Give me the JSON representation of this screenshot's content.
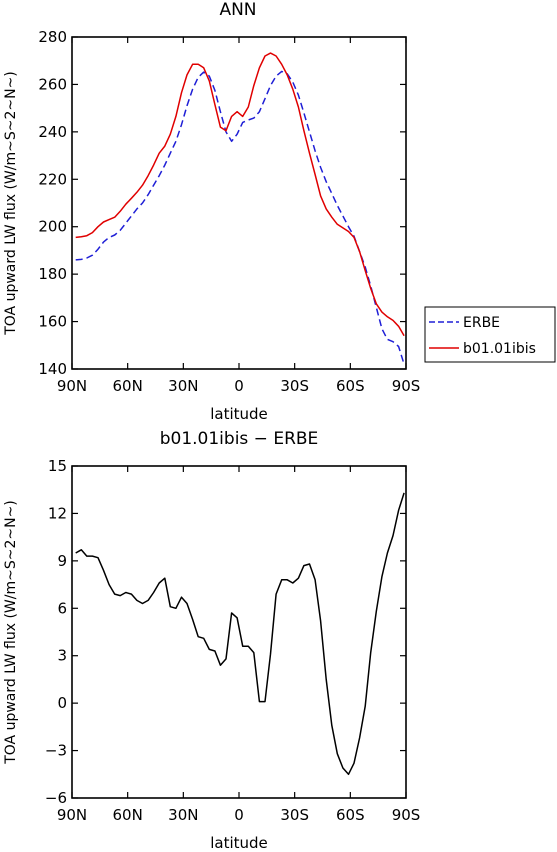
{
  "chart_data": [
    {
      "type": "line",
      "title": "ANN",
      "xlabel": "latitude",
      "ylabel": "TOA upward LW flux (W/m~S~2~N~)",
      "xlim": [
        90,
        -90
      ],
      "ylim": [
        140,
        280
      ],
      "x_ticks": [
        90,
        60,
        30,
        0,
        -30,
        -60,
        -90
      ],
      "x_tick_labels": [
        "90N",
        "60N",
        "30N",
        "0",
        "30S",
        "60S",
        "90S"
      ],
      "y_ticks": [
        140,
        160,
        180,
        200,
        220,
        240,
        260,
        280
      ],
      "y_tick_labels": [
        "140",
        "160",
        "180",
        "200",
        "220",
        "240",
        "260",
        "280"
      ],
      "legend_position": "right",
      "series": [
        {
          "name": "ERBE",
          "color": "#1f1fd6",
          "dash": "dashed",
          "x": [
            88,
            85,
            82,
            79,
            76,
            73,
            70,
            67,
            64,
            61,
            58,
            55,
            52,
            49,
            46,
            43,
            40,
            37,
            34,
            31,
            28,
            25,
            22,
            19,
            16,
            13,
            10,
            7,
            4,
            1,
            -2,
            -5,
            -8,
            -11,
            -14,
            -17,
            -20,
            -23,
            -26,
            -29,
            -32,
            -35,
            -38,
            -41,
            -44,
            -47,
            -50,
            -53,
            -56,
            -59,
            -62,
            -65,
            -68,
            -71,
            -74,
            -77,
            -80,
            -83,
            -86,
            -89
          ],
          "y": [
            186,
            186.2,
            186.8,
            188,
            190.5,
            193.5,
            195.5,
            196.5,
            198.5,
            201.5,
            204.5,
            207.5,
            210,
            213.5,
            217.5,
            221.5,
            226,
            231,
            236,
            243,
            251,
            258,
            263,
            265.2,
            263.5,
            257.5,
            248.5,
            240,
            236,
            239,
            244,
            245,
            245.8,
            248.5,
            254,
            259.5,
            263.5,
            265.5,
            264.5,
            261,
            255.5,
            248,
            240,
            232,
            225,
            219,
            214,
            209,
            204.5,
            200,
            196,
            189.5,
            183,
            175,
            166,
            157,
            152.5,
            151.5,
            149.5,
            142
          ]
        },
        {
          "name": "b01.01ibis",
          "color": "#e00000",
          "dash": "solid",
          "x": [
            88,
            85,
            82,
            79,
            76,
            73,
            70,
            67,
            64,
            61,
            58,
            55,
            52,
            49,
            46,
            43,
            40,
            37,
            34,
            31,
            28,
            25,
            22,
            19,
            16,
            13,
            10,
            7,
            4,
            1,
            -2,
            -5,
            -8,
            -11,
            -14,
            -17,
            -20,
            -23,
            -26,
            -29,
            -32,
            -35,
            -38,
            -41,
            -44,
            -47,
            -50,
            -53,
            -56,
            -59,
            -62,
            -65,
            -68,
            -71,
            -74,
            -77,
            -80,
            -83,
            -86,
            -89
          ],
          "y": [
            195.5,
            195.8,
            196.2,
            197.5,
            200,
            202,
            203,
            204,
            206.5,
            209.5,
            212,
            214.5,
            217.5,
            221.5,
            226,
            231,
            234,
            239,
            246.5,
            256.5,
            264,
            268.5,
            268.5,
            267,
            261.5,
            251.5,
            242,
            240.5,
            246.5,
            248.5,
            246.5,
            250.5,
            259.5,
            267,
            272,
            273.2,
            272,
            268.5,
            264,
            258,
            250.5,
            240.5,
            231,
            222,
            213,
            207.5,
            204,
            201,
            199.5,
            198,
            195.5,
            189.5,
            181.5,
            174,
            167.5,
            164,
            162,
            160.5,
            158,
            154
          ]
        }
      ]
    },
    {
      "type": "line",
      "title": "b01.01ibis − ERBE",
      "xlabel": "latitude",
      "ylabel": "TOA upward LW flux (W/m~S~2~N~)",
      "xlim": [
        90,
        -90
      ],
      "ylim": [
        -6,
        15
      ],
      "x_ticks": [
        90,
        60,
        30,
        0,
        -30,
        -60,
        -90
      ],
      "x_tick_labels": [
        "90N",
        "60N",
        "30N",
        "0",
        "30S",
        "60S",
        "90S"
      ],
      "y_ticks": [
        -6,
        -3,
        0,
        3,
        6,
        9,
        12,
        15
      ],
      "y_tick_labels": [
        "−6",
        "−3",
        "0",
        "3",
        "6",
        "9",
        "12",
        "15"
      ],
      "series": [
        {
          "color": "#000000",
          "dash": "solid",
          "x": [
            88,
            85,
            82,
            79,
            76,
            73,
            70,
            67,
            64,
            61,
            58,
            55,
            52,
            49,
            46,
            43,
            40,
            37,
            34,
            31,
            28,
            25,
            22,
            19,
            16,
            13,
            10,
            7,
            4,
            1,
            -2,
            -5,
            -8,
            -11,
            -14,
            -17,
            -20,
            -23,
            -26,
            -29,
            -32,
            -35,
            -38,
            -41,
            -44,
            -47,
            -50,
            -53,
            -56,
            -59,
            -62,
            -65,
            -68,
            -71,
            -74,
            -77,
            -80,
            -83,
            -86,
            -89
          ],
          "y": [
            9.5,
            9.7,
            9.3,
            9.3,
            9.2,
            8.4,
            7.5,
            6.9,
            6.8,
            7.0,
            6.9,
            6.5,
            6.3,
            6.5,
            7.0,
            7.6,
            7.9,
            6.1,
            6.0,
            6.7,
            6.3,
            5.3,
            4.2,
            4.1,
            3.4,
            3.3,
            2.4,
            2.8,
            5.7,
            5.4,
            3.6,
            3.6,
            3.2,
            0.1,
            0.1,
            3.1,
            6.9,
            7.8,
            7.8,
            7.6,
            7.9,
            8.7,
            8.8,
            7.8,
            5.2,
            1.5,
            -1.4,
            -3.2,
            -4.1,
            -4.5,
            -3.8,
            -2.2,
            -0.2,
            3.2,
            5.8,
            8.0,
            9.5,
            10.6,
            12.2,
            13.3
          ]
        }
      ]
    }
  ]
}
